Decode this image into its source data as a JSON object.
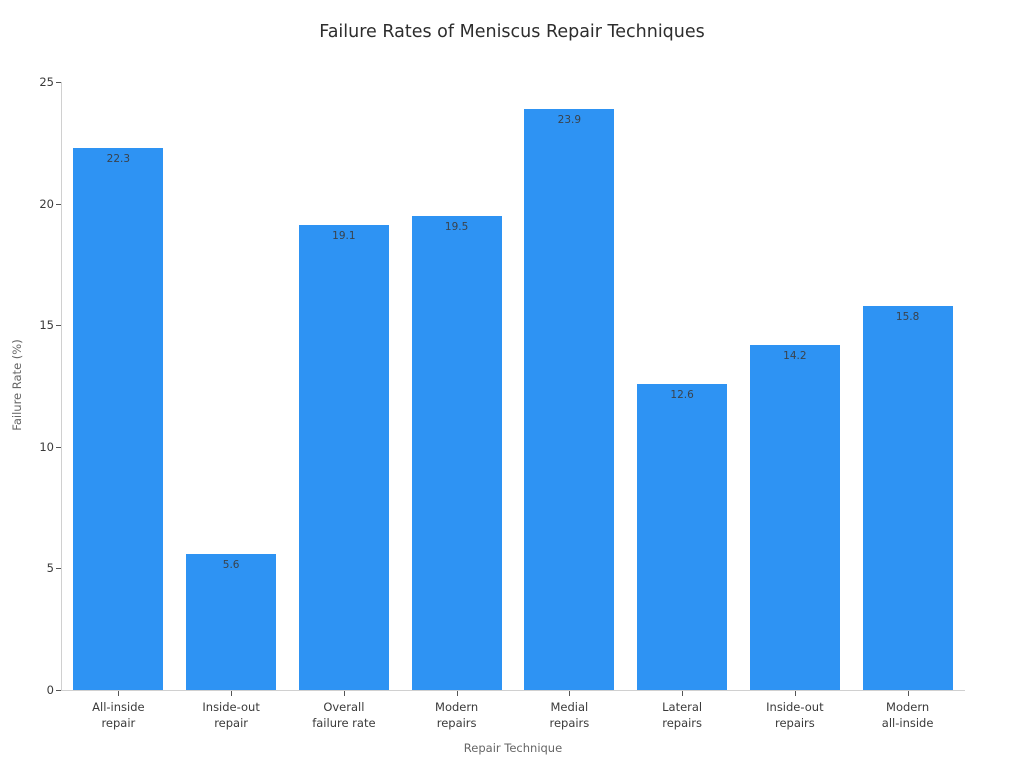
{
  "title": "Failure Rates of Meniscus Repair Techniques",
  "axes": {
    "xlabel": "Repair Technique",
    "ylabel": "Failure Rate (%)"
  },
  "chart_data": {
    "type": "bar",
    "title": "Failure Rates of Meniscus Repair Techniques",
    "xlabel": "Repair Technique",
    "ylabel": "Failure Rate (%)",
    "categories": [
      "All-inside\nrepair",
      "Inside-out\nrepair",
      "Overall\nfailure rate",
      "Modern\nrepairs",
      "Medial\nrepairs",
      "Lateral\nrepairs",
      "Inside-out\nrepairs",
      "Modern\nall-inside"
    ],
    "values": [
      22.3,
      5.6,
      19.1,
      19.5,
      23.9,
      12.6,
      14.2,
      15.8
    ],
    "value_labels": [
      "22.3",
      "5.6",
      "19.1",
      "19.5",
      "23.9",
      "12.6",
      "14.2",
      "15.8"
    ],
    "ylim": [
      0,
      25
    ],
    "yticks": [
      "0",
      "5",
      "10",
      "15",
      "20",
      "25"
    ],
    "grid": false,
    "legend": null,
    "colors": {
      "bar": "#2e93f3",
      "value_label": "#39424c",
      "spine": "#d0d0d0",
      "tick": "#555555",
      "tick_label": "#3a3a3a",
      "axis_title": "#666666",
      "title": "#2d2d2d",
      "background": "#ffffff"
    }
  }
}
